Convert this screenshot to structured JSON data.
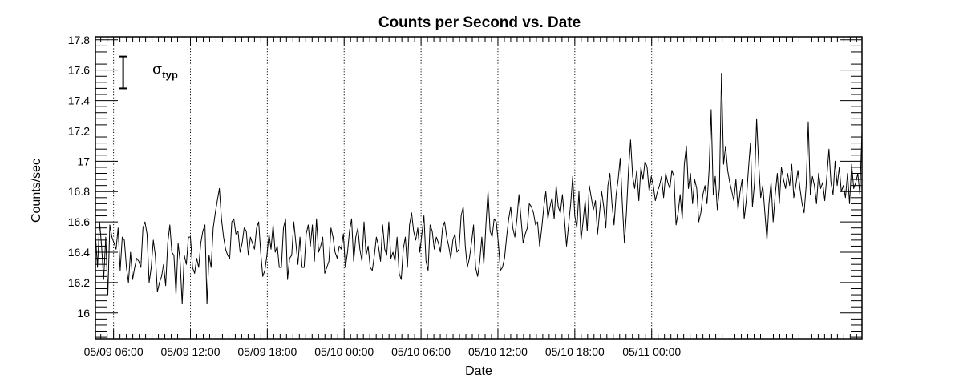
{
  "chart_data": {
    "type": "line",
    "title": "Counts per Second vs. Date",
    "xlabel": "Date",
    "ylabel": "Counts/sec",
    "xlim": [
      "05/09 04:35",
      "05/11 16:25"
    ],
    "ylim": [
      15.83,
      17.82
    ],
    "grid": "vertical dotted lines at major x ticks",
    "x_ticks": [
      {
        "value": "05/09 06:00",
        "label": "05/09 06:00"
      },
      {
        "value": "05/09 12:00",
        "label": "05/09 12:00"
      },
      {
        "value": "05/09 18:00",
        "label": "05/09 18:00"
      },
      {
        "value": "05/10 00:00",
        "label": "05/10 00:00"
      },
      {
        "value": "05/10 06:00",
        "label": "05/10 06:00"
      },
      {
        "value": "05/10 12:00",
        "label": "05/10 12:00"
      },
      {
        "value": "05/10 18:00",
        "label": "05/10 18:00"
      },
      {
        "value": "05/11 00:00",
        "label": "05/11 00:00"
      }
    ],
    "y_ticks": [
      {
        "value": 16,
        "label": "16"
      },
      {
        "value": 16.2,
        "label": "16.2"
      },
      {
        "value": 16.4,
        "label": "16.4"
      },
      {
        "value": 16.6,
        "label": "16.6"
      },
      {
        "value": 16.8,
        "label": "16.8"
      },
      {
        "value": 17,
        "label": "17"
      },
      {
        "value": 17.2,
        "label": "17.2"
      },
      {
        "value": 17.4,
        "label": "17.4"
      },
      {
        "value": 17.6,
        "label": "17.6"
      },
      {
        "value": 17.8,
        "label": "17.8"
      }
    ],
    "annotation": {
      "symbol": "σ",
      "subscript": "typ",
      "errorbar_low": 17.48,
      "errorbar_high": 17.69,
      "errorbar_x": "05/09 06:45"
    },
    "series": [
      {
        "x_start": "05/09 04:35",
        "x_end": "05/11 16:25",
        "interval": "approx. 8.5 minutes between samples",
        "color": "#000000",
        "values": [
          16.52,
          16.3,
          16.6,
          16.44,
          16.22,
          16.5,
          16.12,
          16.58,
          16.5,
          16.46,
          16.42,
          16.56,
          16.28,
          16.5,
          16.48,
          16.3,
          16.2,
          16.4,
          16.22,
          16.3,
          16.36,
          16.34,
          16.3,
          16.56,
          16.6,
          16.52,
          16.2,
          16.3,
          16.48,
          16.38,
          16.14,
          16.2,
          16.24,
          16.32,
          16.18,
          16.46,
          16.58,
          16.4,
          16.38,
          16.12,
          16.46,
          16.34,
          16.06,
          16.38,
          16.32,
          16.5,
          16.5,
          16.3,
          16.26,
          16.36,
          16.3,
          16.46,
          16.54,
          16.58,
          16.06,
          16.38,
          16.3,
          16.56,
          16.66,
          16.74,
          16.82,
          16.62,
          16.5,
          16.42,
          16.38,
          16.36,
          16.6,
          16.62,
          16.52,
          16.54,
          16.4,
          16.46,
          16.56,
          16.54,
          16.38,
          16.5,
          16.46,
          16.42,
          16.56,
          16.6,
          16.4,
          16.24,
          16.28,
          16.38,
          16.52,
          16.42,
          16.58,
          16.4,
          16.44,
          16.3,
          16.3,
          16.56,
          16.62,
          16.22,
          16.36,
          16.38,
          16.6,
          16.46,
          16.32,
          16.5,
          16.3,
          16.3,
          16.52,
          16.58,
          16.44,
          16.58,
          16.34,
          16.62,
          16.4,
          16.44,
          16.5,
          16.26,
          16.3,
          16.34,
          16.56,
          16.5,
          16.4,
          16.36,
          16.44,
          16.42,
          16.52,
          16.3,
          16.4,
          16.54,
          16.62,
          16.34,
          16.5,
          16.56,
          16.42,
          16.34,
          16.6,
          16.38,
          16.44,
          16.3,
          16.28,
          16.38,
          16.5,
          16.44,
          16.34,
          16.58,
          16.42,
          16.38,
          16.6,
          16.36,
          16.4,
          16.34,
          16.5,
          16.26,
          16.22,
          16.42,
          16.5,
          16.3,
          16.58,
          16.66,
          16.54,
          16.48,
          16.56,
          16.4,
          16.52,
          16.64,
          16.34,
          16.28,
          16.58,
          16.54,
          16.42,
          16.5,
          16.46,
          16.4,
          16.56,
          16.6,
          16.5,
          16.44,
          16.36,
          16.48,
          16.52,
          16.4,
          16.42,
          16.64,
          16.7,
          16.44,
          16.3,
          16.36,
          16.46,
          16.58,
          16.3,
          16.24,
          16.34,
          16.5,
          16.32,
          16.58,
          16.8,
          16.54,
          16.5,
          16.62,
          16.6,
          16.46,
          16.28,
          16.3,
          16.36,
          16.5,
          16.62,
          16.7,
          16.56,
          16.5,
          16.62,
          16.78,
          16.62,
          16.46,
          16.52,
          16.56,
          16.72,
          16.7,
          16.66,
          16.58,
          16.6,
          16.44,
          16.56,
          16.7,
          16.8,
          16.62,
          16.7,
          16.76,
          16.62,
          16.84,
          16.7,
          16.66,
          16.78,
          16.62,
          16.44,
          16.58,
          16.72,
          16.9,
          16.64,
          16.56,
          16.8,
          16.48,
          16.6,
          16.74,
          16.54,
          16.84,
          16.76,
          16.68,
          16.74,
          16.52,
          16.66,
          16.8,
          16.7,
          16.56,
          16.84,
          16.92,
          16.72,
          16.58,
          16.78,
          16.88,
          17.02,
          16.72,
          16.46,
          16.66,
          16.94,
          17.14,
          16.9,
          16.82,
          16.94,
          16.74,
          16.96,
          16.88,
          17.0,
          16.96,
          16.8,
          16.9,
          16.84,
          16.74,
          16.8,
          16.84,
          16.9,
          16.76,
          16.92,
          16.86,
          16.82,
          16.94,
          16.9,
          16.58,
          16.66,
          16.78,
          16.62,
          16.98,
          17.1,
          16.82,
          16.92,
          16.72,
          16.88,
          16.82,
          16.6,
          16.66,
          16.78,
          16.84,
          16.72,
          16.94,
          17.34,
          16.78,
          16.9,
          16.68,
          16.82,
          17.58,
          16.98,
          17.1,
          16.94,
          16.86,
          16.8,
          16.74,
          16.88,
          16.68,
          16.8,
          16.88,
          16.62,
          16.74,
          16.94,
          17.12,
          16.7,
          16.86,
          17.28,
          16.98,
          16.76,
          16.84,
          16.66,
          16.48,
          16.72,
          16.86,
          16.6,
          16.78,
          16.92,
          16.72,
          16.96,
          16.88,
          16.82,
          16.92,
          16.84,
          16.98,
          16.76,
          16.84,
          16.94,
          16.82,
          16.72,
          16.66,
          16.84,
          17.26,
          16.78,
          16.9,
          16.84,
          16.72,
          16.92,
          16.82,
          16.86,
          16.74,
          16.9,
          17.08,
          16.86,
          16.78,
          17.0,
          16.84,
          16.96,
          16.8,
          16.84,
          16.76,
          16.92,
          16.72,
          16.98,
          16.82,
          16.86,
          16.92,
          16.78,
          17.2
        ]
      }
    ]
  }
}
